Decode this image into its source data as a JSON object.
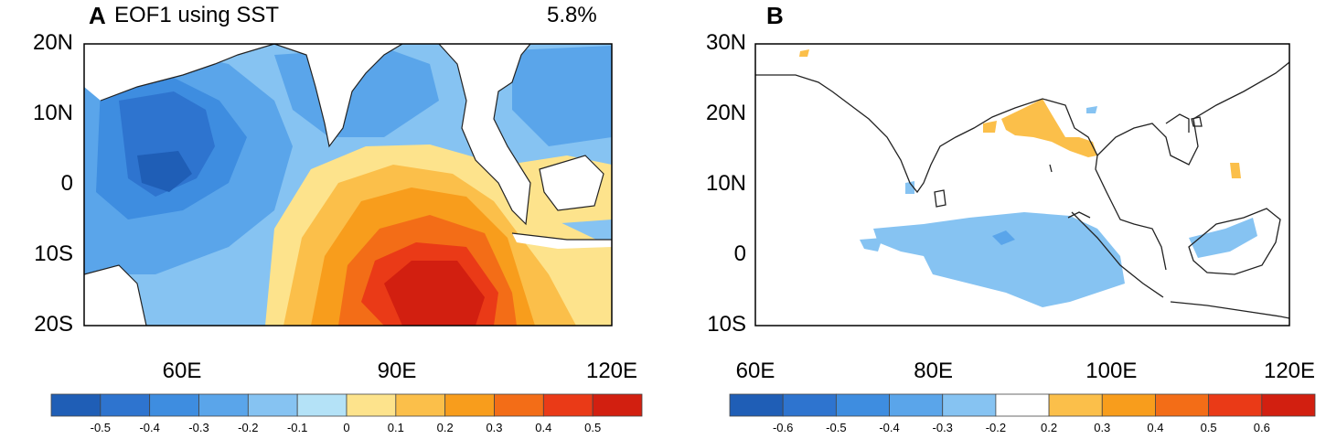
{
  "panel_a": {
    "letter": "A",
    "title": "EOF1 using SST",
    "percent": "5.8%",
    "lat_labels": [
      "20N",
      "10N",
      "0",
      "10S",
      "20S"
    ],
    "lon_labels": [
      "60E",
      "90E",
      "120E"
    ],
    "colorbar_labels": [
      "-0.5",
      "-0.4",
      "-0.3",
      "-0.2",
      "-0.1",
      "0",
      "0.1",
      "0.2",
      "0.3",
      "0.4",
      "0.5"
    ],
    "colorbar_colors": [
      "#1f5eb6",
      "#2e74cf",
      "#3e8de0",
      "#5aa5ea",
      "#86c3f2",
      "#b4e2f7",
      "#fde38c",
      "#fbbf4a",
      "#f89d1c",
      "#f36d17",
      "#ea3a17",
      "#d21f10"
    ]
  },
  "panel_b": {
    "letter": "B",
    "lat_labels": [
      "30N",
      "20N",
      "10N",
      "0",
      "10S"
    ],
    "lon_labels": [
      "60E",
      "80E",
      "100E",
      "120E"
    ],
    "colorbar_labels": [
      "-0.6",
      "-0.5",
      "-0.4",
      "-0.3",
      "-0.2",
      "0.2",
      "0.3",
      "0.4",
      "0.5",
      "0.6"
    ],
    "colorbar_colors": [
      "#1f5eb6",
      "#2e74cf",
      "#3e8de0",
      "#5aa5ea",
      "#86c3f2",
      "#ffffff",
      "#fbbf4a",
      "#f89d1c",
      "#f36d17",
      "#ea3a17",
      "#d21f10"
    ]
  }
}
